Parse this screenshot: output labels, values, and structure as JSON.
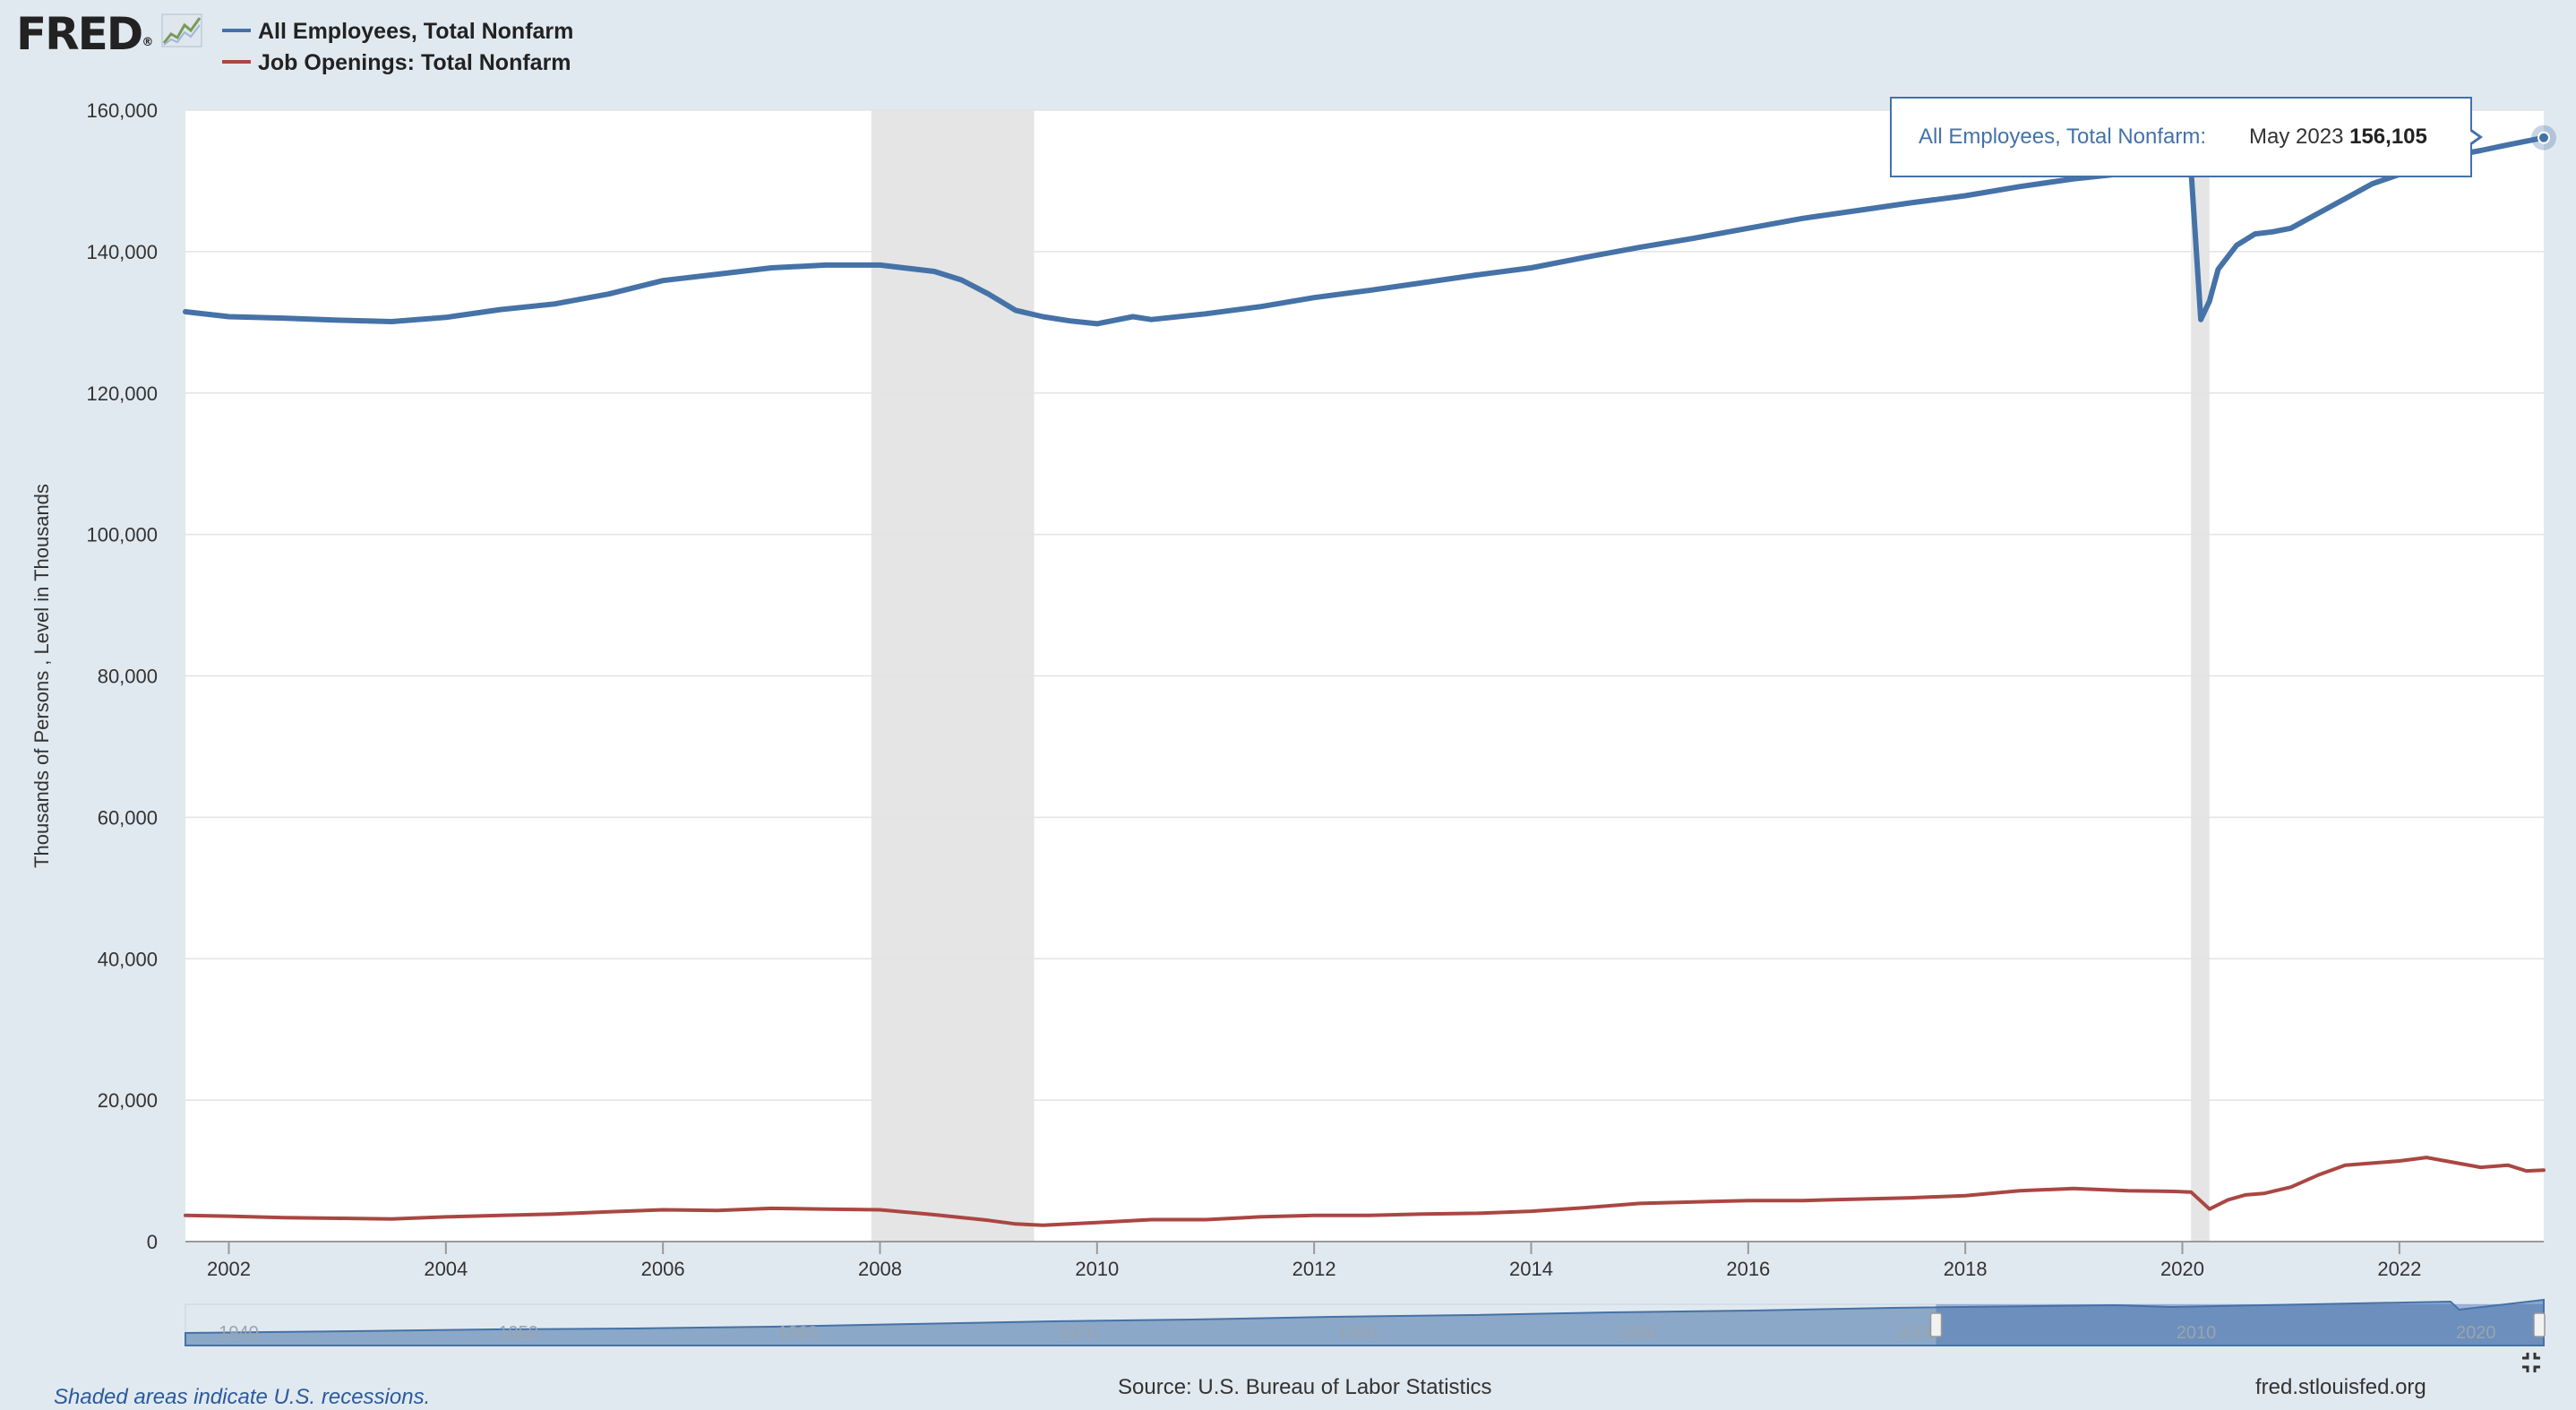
{
  "header": {
    "logo_text": "FRED",
    "logo_mark": "®",
    "logo_graph_icon": "line-graph-icon"
  },
  "legend": [
    {
      "label": "All Employees, Total Nonfarm",
      "color": "#4572a7"
    },
    {
      "label": "Job Openings: Total Nonfarm",
      "color": "#aa4643"
    }
  ],
  "tooltip": {
    "series": "All Employees, Total Nonfarm:",
    "date": "May 2023",
    "value": "156,105"
  },
  "footer": {
    "note": "Shaded areas indicate U.S. recessions.",
    "source": "Source: U.S. Bureau of Labor Statistics",
    "site": "fred.stlouisfed.org"
  },
  "chart_data": {
    "type": "line",
    "title": "",
    "xlabel": "",
    "ylabel": "Thousands of Persons , Level in Thousands",
    "xlim": [
      2001.6,
      2023.33
    ],
    "ylim": [
      0,
      160000
    ],
    "y_ticks": [
      0,
      20000,
      40000,
      60000,
      80000,
      100000,
      120000,
      140000,
      160000
    ],
    "y_tick_labels": [
      "0",
      "20,000",
      "40,000",
      "60,000",
      "80,000",
      "100,000",
      "120,000",
      "140,000",
      "160,000"
    ],
    "x_ticks": [
      2002,
      2004,
      2006,
      2008,
      2010,
      2012,
      2014,
      2016,
      2018,
      2020,
      2022
    ],
    "x_tick_labels": [
      "2002",
      "2004",
      "2006",
      "2008",
      "2010",
      "2012",
      "2014",
      "2016",
      "2018",
      "2020",
      "2022"
    ],
    "recessions": [
      [
        2007.92,
        2009.42
      ],
      [
        2020.08,
        2020.25
      ]
    ],
    "grid": true,
    "legend_position": "top-left",
    "series": [
      {
        "name": "All Employees, Total Nonfarm",
        "color": "#4572a7",
        "x": [
          2001.6,
          2002.0,
          2002.5,
          2003.0,
          2003.5,
          2004.0,
          2004.5,
          2005.0,
          2005.5,
          2006.0,
          2006.5,
          2007.0,
          2007.5,
          2008.0,
          2008.5,
          2008.75,
          2009.0,
          2009.25,
          2009.5,
          2009.75,
          2010.0,
          2010.33,
          2010.5,
          2011.0,
          2011.5,
          2012.0,
          2012.5,
          2013.0,
          2013.5,
          2014.0,
          2014.5,
          2015.0,
          2015.5,
          2016.0,
          2016.5,
          2017.0,
          2017.5,
          2018.0,
          2018.5,
          2019.0,
          2019.5,
          2019.92,
          2020.08,
          2020.17,
          2020.25,
          2020.33,
          2020.5,
          2020.67,
          2020.83,
          2021.0,
          2021.25,
          2021.5,
          2021.75,
          2022.0,
          2022.25,
          2022.5,
          2022.75,
          2023.0,
          2023.33
        ],
        "values": [
          131500,
          130800,
          130600,
          130300,
          130100,
          130700,
          131800,
          132600,
          134000,
          135900,
          136800,
          137700,
          138100,
          138100,
          137200,
          136000,
          134000,
          131700,
          130800,
          130200,
          129800,
          130800,
          130400,
          131200,
          132200,
          133500,
          134500,
          135600,
          136700,
          137700,
          139200,
          140600,
          141900,
          143300,
          144700,
          145800,
          146900,
          147900,
          149200,
          150300,
          151100,
          152300,
          151600,
          130400,
          133000,
          137500,
          140900,
          142500,
          142800,
          143300,
          145400,
          147500,
          149600,
          150900,
          152200,
          153600,
          154300,
          155100,
          156105
        ]
      },
      {
        "name": "Job Openings: Total Nonfarm",
        "color": "#aa4643",
        "x": [
          2001.6,
          2002.0,
          2002.5,
          2003.0,
          2003.5,
          2004.0,
          2004.5,
          2005.0,
          2005.5,
          2006.0,
          2006.5,
          2007.0,
          2007.5,
          2008.0,
          2008.5,
          2009.0,
          2009.25,
          2009.5,
          2010.0,
          2010.5,
          2011.0,
          2011.5,
          2012.0,
          2012.5,
          2013.0,
          2013.5,
          2014.0,
          2014.5,
          2015.0,
          2015.5,
          2016.0,
          2016.5,
          2017.0,
          2017.5,
          2018.0,
          2018.5,
          2019.0,
          2019.5,
          2019.92,
          2020.08,
          2020.25,
          2020.42,
          2020.58,
          2020.75,
          2021.0,
          2021.25,
          2021.5,
          2021.75,
          2022.0,
          2022.25,
          2022.5,
          2022.75,
          2023.0,
          2023.17,
          2023.33
        ],
        "values": [
          3700,
          3600,
          3400,
          3300,
          3200,
          3500,
          3700,
          3900,
          4200,
          4500,
          4400,
          4700,
          4600,
          4500,
          3800,
          3000,
          2500,
          2300,
          2700,
          3100,
          3100,
          3500,
          3700,
          3700,
          3900,
          4000,
          4300,
          4800,
          5400,
          5600,
          5800,
          5800,
          6000,
          6200,
          6500,
          7200,
          7500,
          7200,
          7100,
          7000,
          4600,
          5900,
          6600,
          6800,
          7700,
          9400,
          10800,
          11100,
          11400,
          11900,
          11200,
          10500,
          10800,
          10000,
          10100
        ]
      }
    ],
    "navigator": {
      "x_tick_labels": [
        "1940",
        "1950",
        "1960",
        "1970",
        "1980",
        "1990",
        "2000",
        "2010",
        "2020"
      ]
    }
  }
}
